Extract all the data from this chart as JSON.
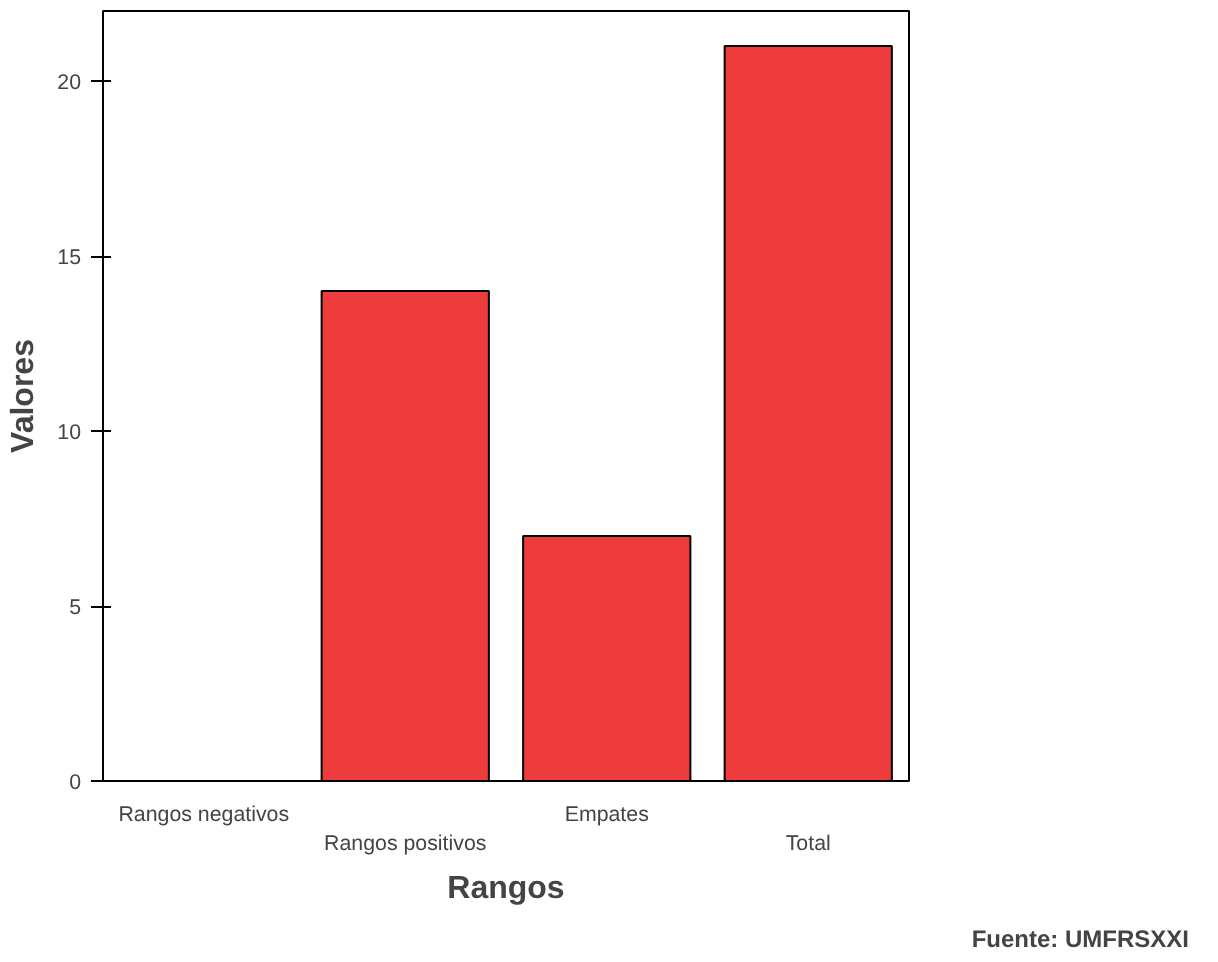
{
  "chart_data": {
    "type": "bar",
    "xlabel": "Rangos",
    "ylabel": "Valores",
    "categories": [
      "Rangos negativos",
      "Rangos positivos",
      "Empates",
      "Total"
    ],
    "values": [
      0,
      14,
      7,
      21
    ],
    "color": "#ee3b3b",
    "ylim": [
      0,
      22
    ],
    "yticks": [
      0,
      5,
      10,
      15,
      20
    ],
    "grid": false,
    "annotations": [
      "Fuente: UMFRSXXI"
    ]
  }
}
